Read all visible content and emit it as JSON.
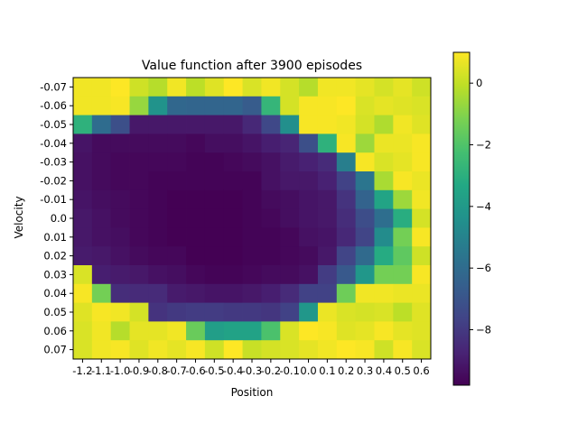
{
  "chart_data": {
    "type": "heatmap",
    "title": "Value function after 3900 episodes",
    "xlabel": "Position",
    "ylabel": "Velocity",
    "x_ticklabels": [
      "-1.2",
      "-1.1",
      "-1.0",
      "-0.9",
      "-0.8",
      "-0.7",
      "-0.6",
      "-0.5",
      "-0.4",
      "-0.3",
      "-0.2",
      "-0.1",
      "0.0",
      "0.1",
      "0.2",
      "0.3",
      "0.4",
      "0.5",
      "0.6"
    ],
    "y_ticklabels": [
      "-0.07",
      "-0.06",
      "-0.05",
      "-0.04",
      "-0.03",
      "-0.02",
      "-0.01",
      "0.0",
      "0.01",
      "0.02",
      "0.03",
      "0.04",
      "0.05",
      "0.06",
      "0.07"
    ],
    "colorbar": {
      "colormap": "viridis",
      "vmin": -9.8,
      "vmax": 1.0,
      "ticks": [
        0,
        -2,
        -4,
        -6,
        -8
      ]
    },
    "values": [
      [
        0.8,
        0.8,
        1.0,
        0.2,
        -0.2,
        0.8,
        -0.1,
        0.5,
        1.0,
        0.4,
        0.8,
        0.3,
        -0.2,
        0.8,
        0.8,
        0.6,
        0.3,
        0.6,
        0.2
      ],
      [
        0.8,
        0.8,
        0.9,
        -0.7,
        -4.3,
        -6.2,
        -6.3,
        -6.3,
        -6.3,
        -6.7,
        -2.7,
        0.3,
        0.9,
        0.9,
        1.0,
        0.4,
        0.6,
        0.5,
        0.4
      ],
      [
        -2.9,
        -6.0,
        -7.2,
        -9.1,
        -9.1,
        -9.1,
        -9.1,
        -9.1,
        -9.1,
        -8.6,
        -7.5,
        -4.5,
        0.9,
        0.9,
        0.8,
        0.3,
        -0.3,
        0.8,
        0.5
      ],
      [
        -9.2,
        -9.5,
        -9.5,
        -9.5,
        -9.5,
        -9.5,
        -9.6,
        -9.4,
        -9.4,
        -9.2,
        -8.9,
        -8.7,
        -7.2,
        -2.9,
        0.9,
        -0.6,
        0.7,
        0.7,
        0.9
      ],
      [
        -9.3,
        -9.5,
        -9.6,
        -9.6,
        -9.6,
        -9.6,
        -9.7,
        -9.7,
        -9.6,
        -9.5,
        -9.3,
        -9.0,
        -8.8,
        -8.5,
        -5.2,
        0.9,
        0.4,
        0.6,
        0.9
      ],
      [
        -9.3,
        -9.5,
        -9.6,
        -9.6,
        -9.7,
        -9.7,
        -9.7,
        -9.7,
        -9.7,
        -9.7,
        -9.3,
        -9.1,
        -9.1,
        -8.8,
        -7.7,
        -5.6,
        -0.4,
        0.9,
        0.7
      ],
      [
        -9.2,
        -9.4,
        -9.5,
        -9.6,
        -9.7,
        -9.8,
        -9.8,
        -9.8,
        -9.8,
        -9.7,
        -9.5,
        -9.4,
        -9.2,
        -9.1,
        -8.2,
        -6.4,
        -3.5,
        -0.6,
        0.8
      ],
      [
        -9.1,
        -9.3,
        -9.5,
        -9.6,
        -9.7,
        -9.8,
        -9.8,
        -9.8,
        -9.8,
        -9.7,
        -9.6,
        -9.4,
        -9.2,
        -9.1,
        -8.4,
        -7.3,
        -5.9,
        -3.1,
        0.3
      ],
      [
        -9.1,
        -9.3,
        -9.4,
        -9.6,
        -9.7,
        -9.8,
        -9.8,
        -9.8,
        -9.8,
        -9.7,
        -9.7,
        -9.6,
        -9.3,
        -9.2,
        -8.6,
        -7.6,
        -4.6,
        -1.3,
        0.9
      ],
      [
        -9.0,
        -9.1,
        -9.3,
        -9.5,
        -9.6,
        -9.6,
        -9.8,
        -9.8,
        -9.8,
        -9.7,
        -9.7,
        -9.6,
        -9.5,
        -9.1,
        -7.6,
        -6.1,
        -3.2,
        -1.7,
        0.2
      ],
      [
        0.4,
        -8.9,
        -9.0,
        -9.1,
        -9.3,
        -9.4,
        -9.6,
        -9.7,
        -9.7,
        -9.6,
        -9.5,
        -9.5,
        -9.3,
        -7.9,
        -6.8,
        -4.1,
        -1.3,
        -1.3,
        0.9
      ],
      [
        0.9,
        -1.3,
        -8.4,
        -8.5,
        -8.5,
        -9.0,
        -9.1,
        -9.2,
        -9.2,
        -9.1,
        -8.9,
        -8.5,
        -7.7,
        -7.7,
        -1.4,
        0.8,
        0.8,
        0.7,
        0.7
      ],
      [
        0.5,
        0.9,
        0.8,
        0.3,
        -8.2,
        -8.0,
        -7.9,
        -7.9,
        -8.0,
        -8.0,
        -8.1,
        -7.7,
        -4.1,
        0.7,
        0.4,
        0.3,
        0.4,
        -0.1,
        0.5
      ],
      [
        0.4,
        0.8,
        -0.2,
        0.6,
        0.6,
        0.8,
        -1.5,
        -3.8,
        -3.6,
        -3.6,
        -2.1,
        0.4,
        1.0,
        0.9,
        0.5,
        0.6,
        0.9,
        0.6,
        0.5
      ],
      [
        0.4,
        0.8,
        0.9,
        0.5,
        0.8,
        0.6,
        0.9,
        0.2,
        1.0,
        0.1,
        0.3,
        0.4,
        0.6,
        0.8,
        1.0,
        0.9,
        0.2,
        0.9,
        0.4
      ]
    ]
  }
}
